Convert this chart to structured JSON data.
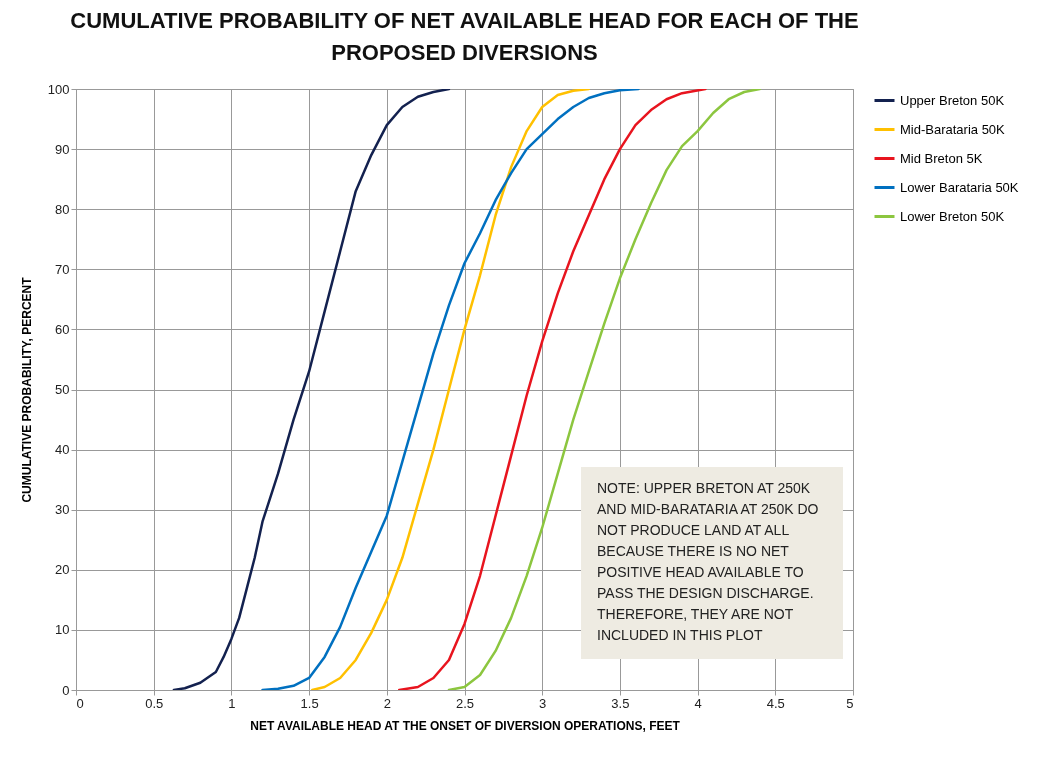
{
  "chart_data": {
    "type": "line",
    "title": "CUMULATIVE PROBABILITY OF NET AVAILABLE HEAD FOR EACH OF THE PROPOSED DIVERSIONS",
    "xlabel": "NET AVAILABLE HEAD AT THE ONSET OF DIVERSION OPERATIONS, FEET",
    "ylabel": "CUMULATIVE  PROBABILITY, PERCENT",
    "xlim": [
      0,
      5
    ],
    "xticks": [
      0,
      0.5,
      1,
      1.5,
      2,
      2.5,
      3,
      3.5,
      4,
      4.5,
      5
    ],
    "ylim": [
      0,
      100
    ],
    "yticks": [
      0,
      10,
      20,
      30,
      40,
      50,
      60,
      70,
      80,
      90,
      100
    ],
    "grid": true,
    "legend": "right",
    "marker": "none",
    "line_style": "solid",
    "annotations": [
      "NOTE: UPPER BRETON AT 250K AND MID-BARATARIA AT 250K DO NOT PRODUCE LAND AT ALL BECAUSE THERE IS NO NET POSITIVE HEAD AVAILABLE TO PASS THE DESIGN DISCHARGE. THEREFORE, THEY ARE NOT INCLUDED IN THIS PLOT"
    ],
    "series": [
      {
        "name": "Upper Breton 50K",
        "color": "#13214f",
        "x": [
          0.63,
          0.7,
          0.8,
          0.9,
          0.95,
          1.0,
          1.05,
          1.1,
          1.15,
          1.2,
          1.3,
          1.4,
          1.5,
          1.6,
          1.7,
          1.8,
          1.9,
          2.0,
          2.1,
          2.2,
          2.3,
          2.4
        ],
        "values": [
          0,
          0.3,
          1.2,
          3,
          5.5,
          8.5,
          12,
          17,
          22,
          28,
          36,
          45,
          53,
          63,
          73,
          83,
          89,
          94,
          97,
          98.7,
          99.5,
          100
        ]
      },
      {
        "name": "Mid-Barataria 50K",
        "color": "#ffc000",
        "x": [
          1.52,
          1.6,
          1.7,
          1.8,
          1.9,
          2.0,
          2.1,
          2.2,
          2.3,
          2.4,
          2.5,
          2.6,
          2.7,
          2.8,
          2.9,
          3.0,
          3.1,
          3.2,
          3.3
        ],
        "values": [
          0,
          0.5,
          2,
          5,
          9.5,
          15,
          22,
          31,
          40,
          50,
          60,
          69,
          79,
          87,
          93,
          97,
          99,
          99.7,
          100
        ]
      },
      {
        "name": "Mid Breton 5K",
        "color": "#e8141e",
        "x": [
          2.08,
          2.2,
          2.3,
          2.4,
          2.5,
          2.6,
          2.7,
          2.8,
          2.9,
          3.0,
          3.1,
          3.2,
          3.3,
          3.4,
          3.5,
          3.6,
          3.7,
          3.8,
          3.9,
          4.05
        ],
        "values": [
          0,
          0.5,
          2,
          5,
          11,
          19,
          29,
          39,
          49,
          58,
          66,
          73,
          79,
          85,
          90,
          94,
          96.5,
          98.3,
          99.3,
          100
        ]
      },
      {
        "name": "Lower Barataria 50K",
        "color": "#0070c0",
        "x": [
          1.2,
          1.3,
          1.4,
          1.5,
          1.6,
          1.7,
          1.8,
          1.9,
          2.0,
          2.1,
          2.2,
          2.3,
          2.4,
          2.5,
          2.6,
          2.7,
          2.8,
          2.9,
          3.0,
          3.1,
          3.2,
          3.3,
          3.4,
          3.5,
          3.62
        ],
        "values": [
          0,
          0.2,
          0.7,
          2,
          5.5,
          10.5,
          17,
          23,
          29,
          38,
          47,
          56,
          64,
          71,
          76,
          81.5,
          86,
          90,
          92.5,
          95,
          97,
          98.5,
          99.3,
          99.8,
          100
        ]
      },
      {
        "name": "Lower Breton 50K",
        "color": "#8cc63f",
        "x": [
          2.4,
          2.5,
          2.6,
          2.7,
          2.8,
          2.9,
          3.0,
          3.1,
          3.2,
          3.3,
          3.4,
          3.5,
          3.6,
          3.7,
          3.8,
          3.9,
          4.0,
          4.1,
          4.2,
          4.3,
          4.4
        ],
        "values": [
          0,
          0.5,
          2.5,
          6.5,
          12,
          19,
          27,
          36,
          45,
          53,
          61,
          68.5,
          75,
          81,
          86.5,
          90.5,
          93,
          96,
          98.3,
          99.5,
          100
        ]
      }
    ]
  }
}
